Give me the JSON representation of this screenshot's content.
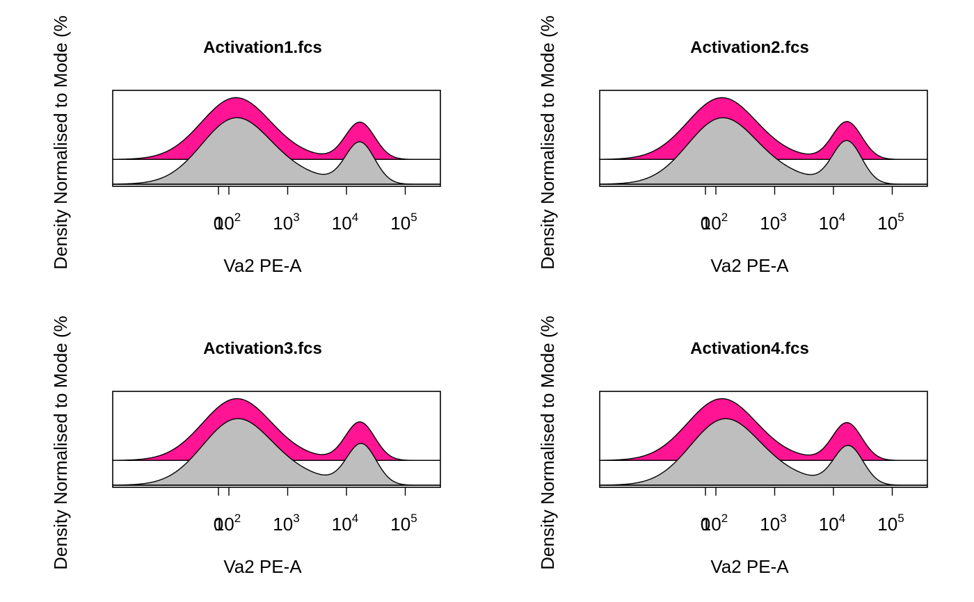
{
  "figure": {
    "x_axis_label": "Va2 PE-A",
    "y_axis_label": "Density Normalised to Mode (%"
  },
  "colors": {
    "upper_fill": "#FF1493",
    "lower_fill": "#BEBEBE",
    "outline": "#000000",
    "background": "#FFFFFF"
  },
  "chart_data": [
    {
      "type": "area",
      "title": "Activation1.fcs",
      "xlabel": "Va2 PE-A",
      "ylabel": "Density Normalised to Mode (%",
      "x_scale": "log",
      "x_ticks": [
        {
          "value": 0,
          "base": "0",
          "exp": ""
        },
        {
          "value": 100,
          "base": "10",
          "exp": "2"
        },
        {
          "value": 1000,
          "base": "10",
          "exp": "3"
        },
        {
          "value": 10000,
          "base": "10",
          "exp": "4"
        },
        {
          "value": 100000,
          "base": "10",
          "exp": "5"
        }
      ],
      "y_ticks": false,
      "series": [
        {
          "fill": "#FF1493",
          "peaks": [
            {
              "x": 130,
              "height": 1.0
            },
            {
              "x": 17000,
              "height": 0.6
            }
          ],
          "valley": 0.04
        },
        {
          "fill": "#BEBEBE",
          "peaks": [
            {
              "x": 130,
              "height": 1.0
            },
            {
              "x": 17000,
              "height": 0.63
            }
          ],
          "valley": 0.12
        }
      ]
    },
    {
      "type": "area",
      "title": "Activation2.fcs",
      "xlabel": "Va2 PE-A",
      "ylabel": "Density Normalised to Mode (%",
      "x_scale": "log",
      "x_ticks": [
        {
          "value": 0,
          "base": "0",
          "exp": ""
        },
        {
          "value": 100,
          "base": "10",
          "exp": "2"
        },
        {
          "value": 1000,
          "base": "10",
          "exp": "3"
        },
        {
          "value": 10000,
          "base": "10",
          "exp": "4"
        },
        {
          "value": 100000,
          "base": "10",
          "exp": "5"
        }
      ],
      "y_ticks": false,
      "series": [
        {
          "fill": "#FF1493",
          "peaks": [
            {
              "x": 125,
              "height": 1.0
            },
            {
              "x": 17000,
              "height": 0.61
            }
          ],
          "valley": 0.04
        },
        {
          "fill": "#BEBEBE",
          "peaks": [
            {
              "x": 125,
              "height": 1.0
            },
            {
              "x": 17000,
              "height": 0.65
            }
          ],
          "valley": 0.12
        }
      ]
    },
    {
      "type": "area",
      "title": "Activation3.fcs",
      "xlabel": "Va2 PE-A",
      "ylabel": "Density Normalised to Mode (%",
      "x_scale": "log",
      "x_ticks": [
        {
          "value": 0,
          "base": "0",
          "exp": ""
        },
        {
          "value": 100,
          "base": "10",
          "exp": "2"
        },
        {
          "value": 1000,
          "base": "10",
          "exp": "3"
        },
        {
          "value": 10000,
          "base": "10",
          "exp": "4"
        },
        {
          "value": 100000,
          "base": "10",
          "exp": "5"
        }
      ],
      "y_ticks": false,
      "series": [
        {
          "fill": "#FF1493",
          "peaks": [
            {
              "x": 135,
              "height": 1.0
            },
            {
              "x": 17000,
              "height": 0.62
            }
          ],
          "valley": 0.04
        },
        {
          "fill": "#BEBEBE",
          "peaks": [
            {
              "x": 135,
              "height": 1.0
            },
            {
              "x": 18000,
              "height": 0.62
            }
          ],
          "valley": 0.13
        }
      ]
    },
    {
      "type": "area",
      "title": "Activation4.fcs",
      "xlabel": "Va2 PE-A",
      "ylabel": "Density Normalised to Mode (%",
      "x_scale": "log",
      "x_ticks": [
        {
          "value": 0,
          "base": "0",
          "exp": ""
        },
        {
          "value": 100,
          "base": "10",
          "exp": "2"
        },
        {
          "value": 1000,
          "base": "10",
          "exp": "3"
        },
        {
          "value": 10000,
          "base": "10",
          "exp": "4"
        },
        {
          "value": 100000,
          "base": "10",
          "exp": "5"
        }
      ],
      "y_ticks": false,
      "series": [
        {
          "fill": "#FF1493",
          "peaks": [
            {
              "x": 125,
              "height": 1.0
            },
            {
              "x": 17000,
              "height": 0.61
            }
          ],
          "valley": 0.04
        },
        {
          "fill": "#BEBEBE",
          "peaks": [
            {
              "x": 140,
              "height": 1.0
            },
            {
              "x": 18000,
              "height": 0.59
            }
          ],
          "valley": 0.12
        }
      ]
    }
  ]
}
